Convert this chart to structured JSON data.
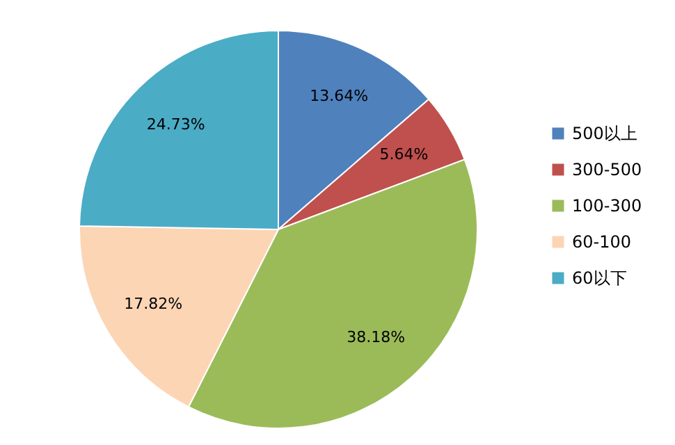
{
  "chart_data": {
    "type": "pie",
    "categories": [
      "500以上",
      "300-500",
      "100-300",
      "60-100",
      "60以下"
    ],
    "values": [
      13.64,
      5.64,
      38.18,
      17.82,
      24.73
    ],
    "colors": [
      "#4f81bd",
      "#c0504d",
      "#9bbb59",
      "#fcd5b5",
      "#4bacc6"
    ],
    "value_labels": [
      "13.64%",
      "5.64%",
      "38.18%",
      "17.82%",
      "24.73%"
    ],
    "legend": "right"
  }
}
